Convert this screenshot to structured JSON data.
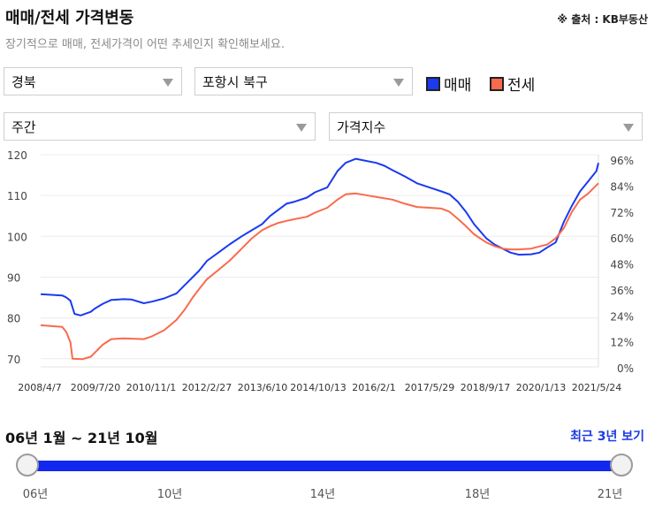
{
  "header": {
    "title": "매매/전세 가격변동",
    "source": "※ 출처 : KB부동산",
    "subtitle": "장기적으로 매매, 전세가격이 어떤 추세인지 확인해보세요."
  },
  "filters": {
    "region": "경북",
    "district": "포항시 북구",
    "period": "주간",
    "metric": "가격지수"
  },
  "legend": [
    {
      "label": "매매",
      "color": "#1a3af0"
    },
    {
      "label": "전세",
      "color": "#fa6a4c"
    }
  ],
  "range": {
    "label": "06년 1월 ~ 21년 10월",
    "recent_button": "최근 3년 보기",
    "ticks": [
      "06년",
      "10년",
      "14년",
      "18년",
      "21년"
    ],
    "start_fraction": 0,
    "end_fraction": 1
  },
  "chart_data": {
    "type": "line",
    "x_ticks": [
      "2008/4/7",
      "2009/7/20",
      "2010/11/1",
      "2012/2/27",
      "2013/6/10",
      "2014/10/13",
      "2016/2/1",
      "2017/5/29",
      "2018/9/17",
      "2020/1/13",
      "2021/5/24"
    ],
    "y_left_ticks": [
      120,
      110,
      100,
      90,
      80,
      70
    ],
    "y_right_ticks": [
      "96%",
      "84%",
      "72%",
      "60%",
      "48%",
      "36%",
      "24%",
      "12%",
      "0%"
    ],
    "y_left_lim": [
      68,
      120
    ],
    "y_right_lim": [
      0,
      96
    ],
    "x_lim": [
      2008.27,
      2021.95
    ],
    "grid": true,
    "series": [
      {
        "name": "매매",
        "color": "#1a3af0",
        "x": [
          2008.27,
          2008.8,
          2008.9,
          2009.0,
          2009.1,
          2009.25,
          2009.5,
          2009.6,
          2009.8,
          2010.0,
          2010.3,
          2010.5,
          2010.8,
          2011.0,
          2011.3,
          2011.6,
          2011.8,
          2012.0,
          2012.15,
          2012.35,
          2012.6,
          2012.9,
          2013.2,
          2013.45,
          2013.7,
          2013.9,
          2014.1,
          2014.3,
          2014.5,
          2014.8,
          2015.0,
          2015.3,
          2015.55,
          2015.75,
          2016.0,
          2016.2,
          2016.5,
          2016.7,
          2016.9,
          2017.2,
          2017.5,
          2017.8,
          2018.1,
          2018.3,
          2018.5,
          2018.7,
          2018.9,
          2019.2,
          2019.4,
          2019.6,
          2019.8,
          2020.0,
          2020.3,
          2020.5,
          2020.7,
          2020.9,
          2021.1,
          2021.3,
          2021.5,
          2021.7,
          2021.9,
          2021.95
        ],
        "y": [
          85.8,
          85.5,
          85.0,
          84.2,
          81.0,
          80.6,
          81.5,
          82.3,
          83.5,
          84.4,
          84.6,
          84.5,
          83.6,
          84.0,
          84.8,
          86.0,
          88.0,
          90.0,
          91.5,
          94.0,
          95.8,
          98.0,
          100.0,
          101.5,
          103.0,
          105.0,
          106.5,
          108.0,
          108.5,
          109.5,
          110.8,
          112.0,
          116.0,
          118.0,
          119.0,
          118.6,
          118.0,
          117.3,
          116.2,
          114.7,
          113.0,
          112.0,
          111.0,
          110.3,
          108.5,
          106.0,
          103.0,
          99.5,
          98.0,
          97.0,
          96.0,
          95.5,
          95.6,
          96.0,
          97.3,
          98.5,
          103.5,
          107.5,
          111.0,
          113.5,
          116.0,
          118.0
        ]
      },
      {
        "name": "전세",
        "color": "#fa6a4c",
        "x": [
          2008.27,
          2008.8,
          2008.9,
          2009.0,
          2009.05,
          2009.3,
          2009.5,
          2009.6,
          2009.8,
          2010.0,
          2010.3,
          2010.6,
          2010.8,
          2011.0,
          2011.3,
          2011.6,
          2011.8,
          2012.0,
          2012.15,
          2012.35,
          2012.6,
          2012.9,
          2013.2,
          2013.45,
          2013.7,
          2013.9,
          2014.1,
          2014.3,
          2014.5,
          2014.8,
          2015.0,
          2015.3,
          2015.55,
          2015.75,
          2016.0,
          2016.3,
          2016.6,
          2016.9,
          2017.2,
          2017.5,
          2017.8,
          2018.1,
          2018.3,
          2018.5,
          2018.7,
          2018.9,
          2019.2,
          2019.4,
          2019.6,
          2019.8,
          2020.0,
          2020.3,
          2020.5,
          2020.7,
          2020.9,
          2021.1,
          2021.3,
          2021.5,
          2021.7,
          2021.9,
          2021.95
        ],
        "y": [
          78.2,
          77.8,
          76.5,
          74.0,
          70.0,
          69.9,
          70.5,
          71.5,
          73.5,
          74.8,
          75.0,
          74.9,
          74.8,
          75.5,
          77.0,
          79.5,
          82.0,
          85.0,
          87.0,
          89.5,
          91.5,
          94.0,
          97.0,
          99.5,
          101.5,
          102.5,
          103.3,
          103.8,
          104.2,
          104.8,
          105.8,
          107.0,
          109.0,
          110.3,
          110.5,
          110.0,
          109.5,
          109.0,
          108.0,
          107.2,
          107.0,
          106.8,
          106.0,
          104.3,
          102.5,
          100.5,
          98.5,
          97.6,
          97.0,
          96.8,
          96.8,
          97.0,
          97.5,
          98.0,
          99.5,
          102.0,
          106.0,
          109.0,
          110.5,
          112.5,
          113.0
        ]
      }
    ]
  }
}
